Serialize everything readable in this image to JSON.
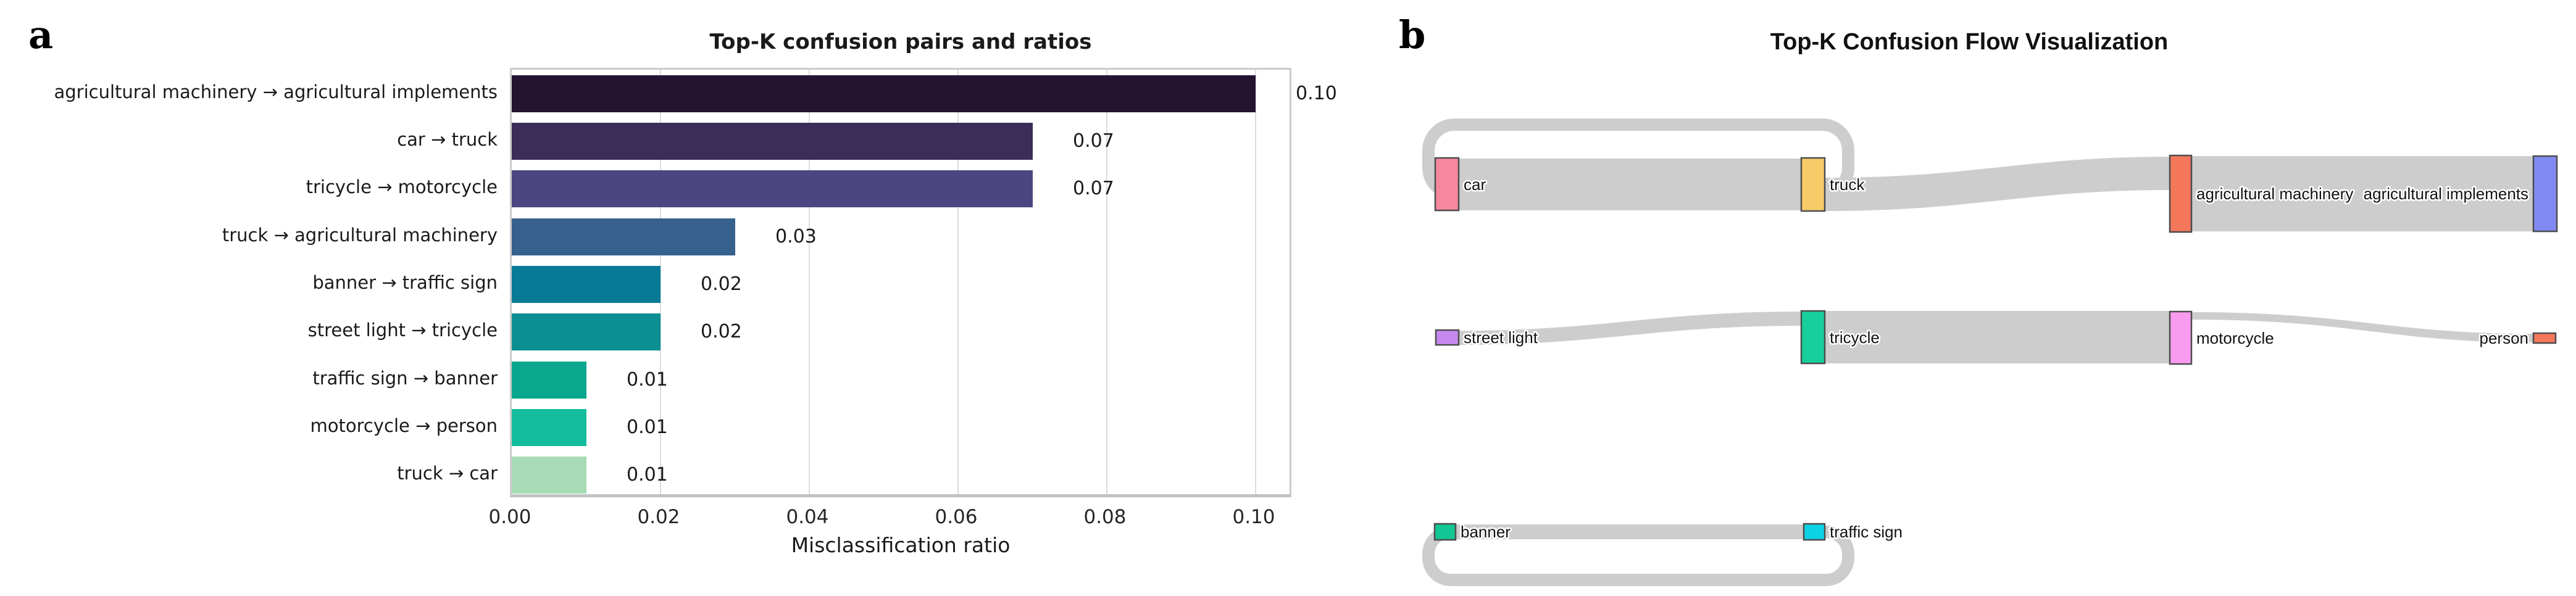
{
  "panel_a": {
    "label": "a",
    "chart_data": {
      "type": "bar",
      "orientation": "horizontal",
      "title": "Top-K confusion pairs and ratios",
      "xlabel": "Misclassification ratio",
      "categories": [
        "agricultural machinery → agricultural implements",
        "car → truck",
        "tricycle → motorcycle",
        "truck → agricultural machinery",
        "banner → traffic sign",
        "street light → tricycle",
        "traffic sign → banner",
        "motorcycle → person",
        "truck → car"
      ],
      "values": [
        0.1,
        0.07,
        0.07,
        0.03,
        0.02,
        0.02,
        0.01,
        0.01,
        0.01
      ],
      "value_labels": [
        "0.10",
        "0.07",
        "0.07",
        "0.03",
        "0.02",
        "0.02",
        "0.01",
        "0.01",
        "0.01"
      ],
      "bar_colors": [
        "#251431",
        "#3a2d58",
        "#4c4680",
        "#36618e",
        "#077a96",
        "#0c8f93",
        "#0aa78e",
        "#13bd9d",
        "#a6dbb5"
      ],
      "x_ticks": [
        "0.00",
        "0.02",
        "0.04",
        "0.06",
        "0.08",
        "0.10"
      ],
      "xlim": [
        0.0,
        0.105
      ],
      "grid": true,
      "legend": "none"
    }
  },
  "panel_b": {
    "label": "b",
    "title": "Top-K Confusion Flow Visualization",
    "chart_data": {
      "type": "sankey",
      "nodes": [
        {
          "id": "car",
          "label": "car",
          "color": "#f7869f"
        },
        {
          "id": "truck",
          "label": "truck",
          "color": "#f6cb68"
        },
        {
          "id": "agricultural_machinery",
          "label": "agricultural machinery",
          "color": "#f4775c"
        },
        {
          "id": "agricultural_implements",
          "label": "agricultural implements",
          "color": "#8189f2"
        },
        {
          "id": "street_light",
          "label": "street light",
          "color": "#c588f0"
        },
        {
          "id": "tricycle",
          "label": "tricycle",
          "color": "#17cf9c"
        },
        {
          "id": "motorcycle",
          "label": "motorcycle",
          "color": "#f99bee"
        },
        {
          "id": "person",
          "label": "person",
          "color": "#f4775c"
        },
        {
          "id": "banner",
          "label": "banner",
          "color": "#12c794"
        },
        {
          "id": "traffic_sign",
          "label": "traffic sign",
          "color": "#0cd2e6"
        }
      ],
      "flows": [
        {
          "source": "car",
          "target": "truck",
          "value": 0.07
        },
        {
          "source": "truck",
          "target": "agricultural_machinery",
          "value": 0.03
        },
        {
          "source": "agricultural_machinery",
          "target": "agricultural_implements",
          "value": 0.1
        },
        {
          "source": "truck",
          "target": "car",
          "value": 0.01,
          "loop": true
        },
        {
          "source": "street_light",
          "target": "tricycle",
          "value": 0.02
        },
        {
          "source": "tricycle",
          "target": "motorcycle",
          "value": 0.07
        },
        {
          "source": "motorcycle",
          "target": "person",
          "value": 0.01
        },
        {
          "source": "banner",
          "target": "traffic_sign",
          "value": 0.02
        },
        {
          "source": "traffic_sign",
          "target": "banner",
          "value": 0.01,
          "loop": true
        }
      ],
      "flow_color": "#cdcdcd"
    }
  }
}
